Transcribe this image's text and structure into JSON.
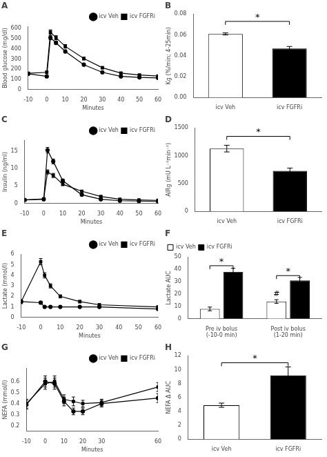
{
  "chart_data": [
    {
      "type": "line",
      "title": "A",
      "x": [
        -10,
        0,
        2,
        5,
        10,
        20,
        30,
        40,
        50,
        60
      ],
      "series": [
        {
          "name": "icv Veh",
          "color": "black",
          "marker": "circle",
          "line_style": "solid",
          "values": [
            155,
            130,
            510,
            460,
            375,
            245,
            170,
            130,
            120,
            115
          ],
          "errors": [
            10,
            8,
            20,
            18,
            15,
            12,
            10,
            8,
            7,
            7
          ]
        },
        {
          "name": "icv FGFRi",
          "color": "black",
          "marker": "square",
          "line_style": "solid",
          "values": [
            160,
            170,
            565,
            510,
            425,
            305,
            215,
            162,
            143,
            133
          ],
          "errors": [
            12,
            10,
            22,
            20,
            18,
            14,
            12,
            9,
            8,
            8
          ]
        }
      ],
      "xlabel": "Minutes",
      "ylabel": "Blood glucose (mg/dl)",
      "xlim": [
        -10,
        60
      ],
      "xticks": [
        -10,
        0,
        10,
        20,
        30,
        40,
        50,
        60
      ],
      "ylim": [
        0,
        620
      ],
      "yticks": [
        0,
        100,
        200,
        300,
        400,
        500,
        600
      ],
      "grid": false,
      "legend": "top-right"
    },
    {
      "type": "bar",
      "title": "B",
      "categories": [
        "icv Veh",
        "icv FGFRi"
      ],
      "values": [
        0.061,
        0.047
      ],
      "errors": [
        0.001,
        0.002
      ],
      "colors": [
        "white",
        "black"
      ],
      "ylabel": "Kg (%/min; 4-25min)",
      "ylim": [
        0,
        0.08
      ],
      "yticks": [
        {
          "value": 0,
          "label": "0.00"
        },
        0.02,
        0.04,
        0.06,
        0.08
      ],
      "grid": false,
      "annotations": [
        {
          "text": "*",
          "from": "icv Veh",
          "to": "icv FGFRi",
          "y": 0.073
        }
      ]
    },
    {
      "type": "line",
      "title": "C",
      "x": [
        -10,
        0,
        2,
        5,
        10,
        20,
        30,
        40,
        50,
        60
      ],
      "series": [
        {
          "name": "icv Veh",
          "color": "black",
          "marker": "circle",
          "line_style": "solid",
          "values": [
            1.0,
            1.2,
            15.2,
            12.0,
            6.5,
            2.5,
            1.2,
            0.8,
            0.7,
            0.6
          ],
          "errors": [
            0.1,
            0.1,
            0.8,
            0.7,
            0.5,
            0.3,
            0.15,
            0.1,
            0.08,
            0.08
          ]
        },
        {
          "name": "icv FGFRi",
          "color": "black",
          "marker": "square",
          "line_style": "solid",
          "values": [
            1.0,
            1.3,
            9.0,
            8.0,
            5.5,
            3.5,
            2.0,
            1.2,
            1.0,
            0.9
          ],
          "errors": [
            0.1,
            0.1,
            0.6,
            0.6,
            0.4,
            0.3,
            0.15,
            0.1,
            0.08,
            0.08
          ]
        }
      ],
      "xlabel": "Minutes",
      "ylabel": "Insulin (ng/ml)",
      "xlim": [
        -10,
        60
      ],
      "xticks": [
        -10,
        0,
        10,
        20,
        30,
        40,
        50,
        60
      ],
      "ylim": [
        0,
        18
      ],
      "yticks": [
        0,
        5,
        10,
        15
      ],
      "grid": false,
      "legend": "top-right"
    },
    {
      "type": "bar",
      "title": "D",
      "categories": [
        "icv Veh",
        "icv FGFRi"
      ],
      "values": [
        1130,
        730
      ],
      "errors": [
        60,
        50
      ],
      "colors": [
        "white",
        "black"
      ],
      "ylabel": "AIRg (mU L⁻¹min⁻¹)",
      "ylim": [
        0,
        1500
      ],
      "yticks": [
        0,
        500,
        1000,
        1500
      ],
      "grid": false,
      "annotations": [
        {
          "text": "*",
          "from": "icv Veh",
          "to": "icv FGFRi",
          "y": 1350
        }
      ]
    },
    {
      "type": "line",
      "title": "E",
      "x": [
        -10,
        0,
        2,
        5,
        10,
        20,
        30,
        60
      ],
      "series": [
        {
          "name": "icv Veh",
          "color": "black",
          "marker": "circle",
          "line_style": "solid",
          "values": [
            1.5,
            1.4,
            1.0,
            1.0,
            1.0,
            1.0,
            1.0,
            0.8
          ],
          "errors": [
            0.1,
            0.1,
            0.05,
            0.05,
            0.05,
            0.05,
            0.05,
            0.05
          ]
        },
        {
          "name": "icv FGFRi",
          "color": "black",
          "marker": "square",
          "line_style": "solid",
          "values": [
            1.5,
            5.3,
            4.0,
            3.0,
            2.0,
            1.5,
            1.2,
            1.0
          ],
          "errors": [
            0.2,
            0.3,
            0.25,
            0.2,
            0.15,
            0.12,
            0.1,
            0.08
          ]
        }
      ],
      "xlabel": "Minutes",
      "ylabel": "Lactate (mmol/l)",
      "xlim": [
        -10,
        60
      ],
      "xticks": [
        -10,
        0,
        10,
        20,
        30,
        40,
        50,
        60
      ],
      "ylim": [
        0,
        6
      ],
      "yticks": [
        0,
        1,
        2,
        3,
        4,
        5,
        6
      ],
      "grid": false,
      "legend": "top-right"
    },
    {
      "type": "bar",
      "title": "F",
      "categories": [
        "Pre iv bolus\n(-10-0 min)",
        "Post iv bolus\n(1-20 min)"
      ],
      "series": [
        {
          "name": "icv Veh",
          "color": "white",
          "values": [
            8,
            14
          ],
          "errors": [
            1.5,
            1.5
          ]
        },
        {
          "name": "icv FGFRi",
          "color": "black",
          "values": [
            38,
            31
          ],
          "errors": [
            3,
            2.5
          ]
        }
      ],
      "ylabel": "Lactate AUC",
      "ylim": [
        0,
        50
      ],
      "yticks": [
        0,
        10,
        20,
        30,
        40,
        50
      ],
      "grid": false,
      "legend": "top-left",
      "annotations": [
        {
          "text": "*",
          "category": "Pre iv bolus\n(-10-0 min)",
          "y": 43
        },
        {
          "text": "*",
          "category": "Post iv bolus\n(1-20 min)",
          "y": 35
        },
        {
          "text": "#",
          "category": "Post iv bolus\n(1-20 min)",
          "series": "icv Veh"
        }
      ]
    },
    {
      "type": "line",
      "title": "G",
      "x": [
        -10,
        0,
        5,
        10,
        15,
        20,
        30,
        60
      ],
      "series": [
        {
          "name": "icv Veh",
          "color": "black",
          "marker": "circle",
          "line_style": "solid",
          "values": [
            0.39,
            0.6,
            0.58,
            0.42,
            0.33,
            0.33,
            0.4,
            0.45
          ],
          "errors": [
            0.04,
            0.05,
            0.05,
            0.04,
            0.03,
            0.03,
            0.03,
            0.04
          ]
        },
        {
          "name": "icv FGFRi",
          "color": "black",
          "marker": "square",
          "line_style": "solid",
          "values": [
            0.4,
            0.58,
            0.6,
            0.44,
            0.42,
            0.4,
            0.41,
            0.55
          ],
          "errors": [
            0.04,
            0.05,
            0.05,
            0.04,
            0.04,
            0.03,
            0.03,
            0.04
          ]
        }
      ],
      "xlabel": "Minutes",
      "ylabel": "NEFA (mmol/l)",
      "xlim": [
        -10,
        60
      ],
      "xticks": [
        -10,
        0,
        10,
        20,
        30,
        60
      ],
      "ylim": [
        0.15,
        0.72
      ],
      "yticks": [
        0.2,
        0.3,
        0.4,
        0.5,
        0.6
      ],
      "grid": false,
      "legend": "top-right"
    },
    {
      "type": "bar",
      "title": "H",
      "categories": [
        "icv Veh",
        "icv FGFRi"
      ],
      "values": [
        4.9,
        9.2
      ],
      "errors": [
        0.3,
        1.2
      ],
      "colors": [
        "white",
        "black"
      ],
      "ylabel": "NEFA Δ AUC",
      "ylim": [
        0,
        12
      ],
      "yticks": [
        0,
        2,
        4,
        6,
        8,
        10,
        12
      ],
      "grid": false,
      "annotations": [
        {
          "text": "*",
          "from": "icv Veh",
          "to": "icv FGFRi",
          "y": 11.0
        }
      ]
    }
  ]
}
